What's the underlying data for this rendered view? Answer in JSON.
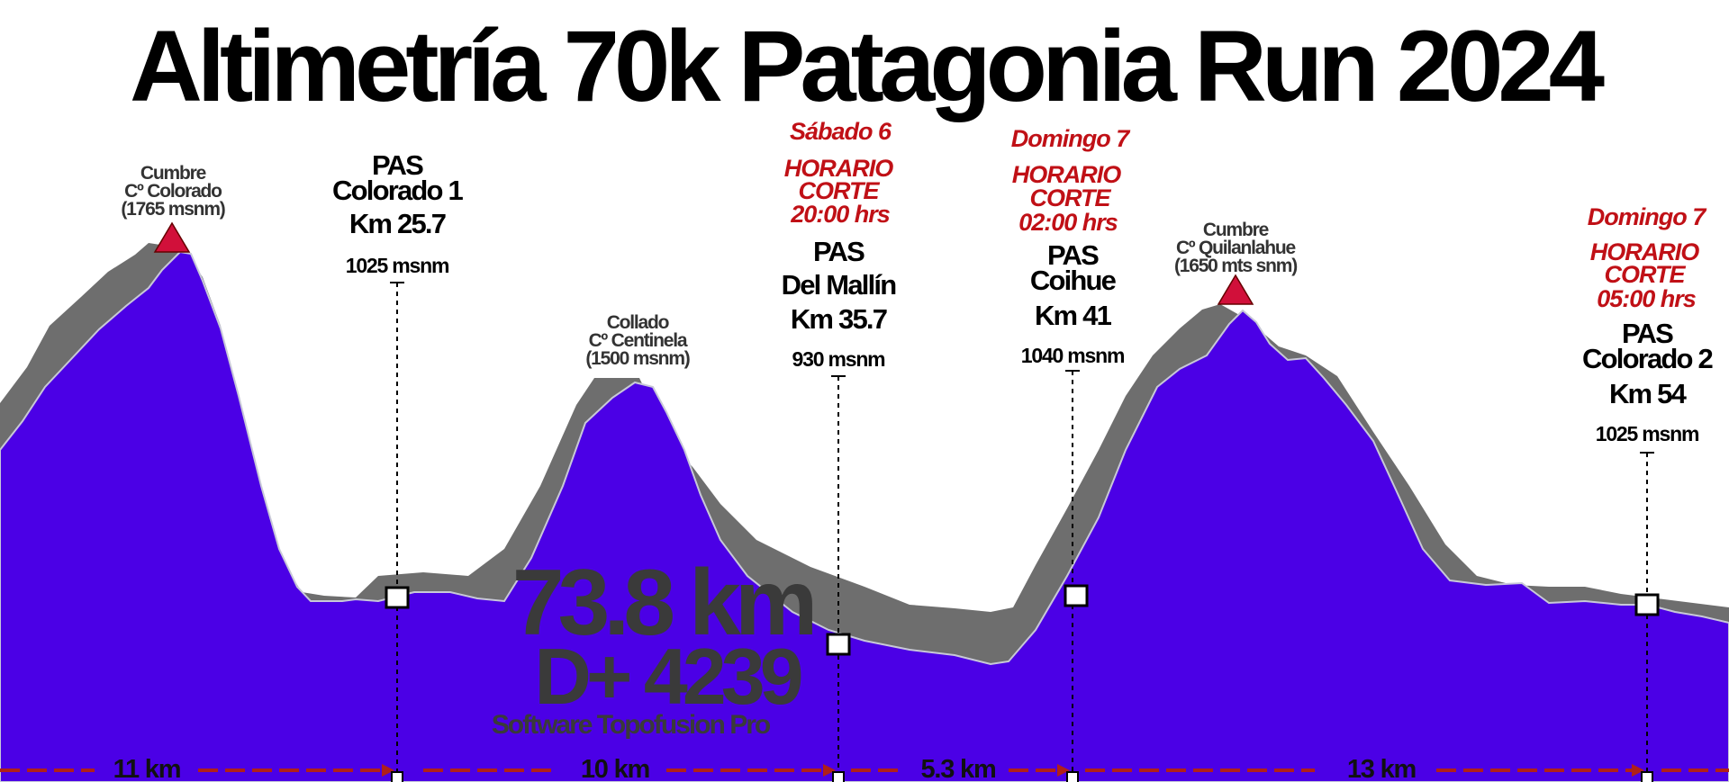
{
  "title": "Altimetría 70k Patagonia Run 2024",
  "colors": {
    "profile_fill": "#4b00e6",
    "profile_shadow": "#6e6e6e",
    "summit_marker": "#d1103a",
    "cutoff_text": "#c01016",
    "segment_dash": "#b0201a"
  },
  "summits": [
    {
      "lines": [
        "Cumbre",
        "Cº Colorado",
        "(1765 msnm)"
      ]
    },
    {
      "lines": [
        "Collado",
        "Cº Centinela",
        "(1500 msnm)"
      ]
    },
    {
      "lines": [
        "Cumbre",
        "Cº Quilanlahue",
        "(1650 mts snm)"
      ]
    }
  ],
  "aid_stations": [
    {
      "lines": [
        "PAS",
        "Colorado 1",
        "Km 25.7"
      ],
      "altitude": "1025 msnm",
      "cutoff": null
    },
    {
      "lines": [
        "PAS",
        "Del Mallín",
        "Km 35.7"
      ],
      "altitude": "930 msnm",
      "cutoff": {
        "day": "Sábado 6",
        "label": [
          "HORARIO",
          "CORTE"
        ],
        "time": "20:00 hrs"
      }
    },
    {
      "lines": [
        "PAS",
        "Coihue",
        "Km 41"
      ],
      "altitude": "1040 msnm",
      "cutoff": {
        "day": "Domingo 7",
        "label": [
          "HORARIO",
          "CORTE"
        ],
        "time": "02:00 hrs"
      }
    },
    {
      "lines": [
        "PAS",
        "Colorado 2",
        "Km 54"
      ],
      "altitude": "1025 msnm",
      "cutoff": {
        "day": "Domingo 7",
        "label": [
          "HORARIO",
          "CORTE"
        ],
        "time": "05:00 hrs"
      }
    }
  ],
  "segments": [
    "11 km",
    "10 km",
    "5.3 km",
    "13 km"
  ],
  "summary": {
    "distance": "73.8 km",
    "elevation_gain": "D+ 4239",
    "software": "Software Topofusion Pro"
  }
}
